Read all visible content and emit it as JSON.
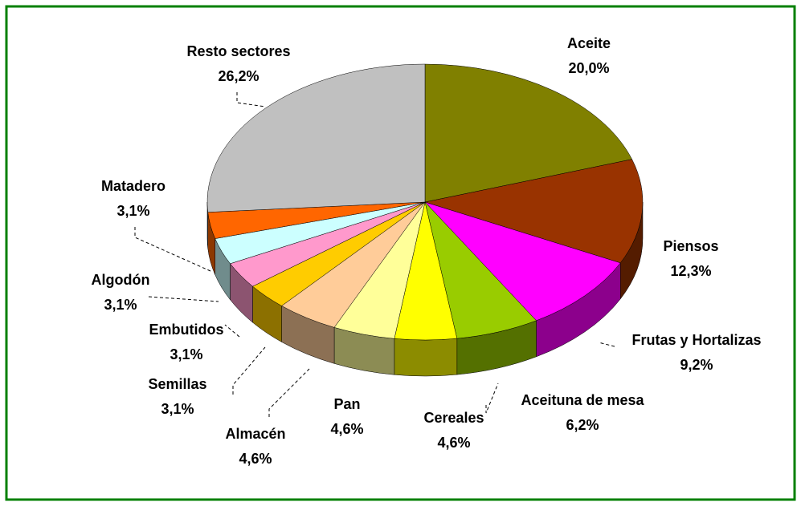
{
  "chart_data": {
    "type": "pie3d",
    "categories": [
      "Aceite",
      "Piensos",
      "Frutas y Hortalizas",
      "Aceituna de mesa",
      "Cereales",
      "Pan",
      "Almacén",
      "Semillas",
      "Embutidos",
      "Algodón",
      "Matadero",
      "Resto sectores"
    ],
    "values": [
      20.0,
      12.3,
      9.2,
      6.2,
      4.6,
      4.6,
      4.6,
      3.1,
      3.1,
      3.1,
      3.1,
      26.2
    ],
    "value_labels": [
      "20,0%",
      "12,3%",
      "9,2%",
      "6,2%",
      "4,6%",
      "4,6%",
      "4,6%",
      "3,1%",
      "3,1%",
      "3,1%",
      "3,1%",
      "26,2%"
    ],
    "colors": [
      "#808000",
      "#993300",
      "#ff00ff",
      "#99cc00",
      "#ffff00",
      "#ffff99",
      "#ffcc99",
      "#ffcc00",
      "#ff99cc",
      "#ccffff",
      "#ff6600",
      "#c0c0c0"
    ]
  }
}
